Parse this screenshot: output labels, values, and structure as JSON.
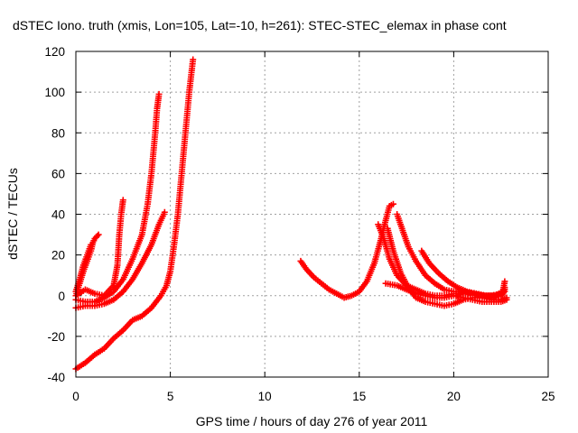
{
  "chart_data": {
    "type": "scatter",
    "title": "dSTEC Iono. truth (xmis, Lon=105, Lat=-10, h=261): STEC-STEC_elemax in phase cont",
    "xlabel": "GPS time / hours of day 276 of year 2011",
    "ylabel": "dSTEC  / TECUs",
    "xlim": [
      0,
      25
    ],
    "ylim": [
      -40,
      120
    ],
    "xticks": [
      "0",
      "5",
      "10",
      "15",
      "20",
      "25"
    ],
    "yticks": [
      "-40",
      "-20",
      "0",
      "20",
      "40",
      "60",
      "80",
      "100",
      "120"
    ],
    "grid": true,
    "marker": "+",
    "color": "#ff0000",
    "series": [
      {
        "points": [
          [
            0.0,
            0
          ],
          [
            0.2,
            6
          ],
          [
            0.4,
            12
          ],
          [
            0.6,
            17
          ],
          [
            0.8,
            22
          ],
          [
            0.9,
            26
          ],
          [
            1.0,
            28
          ],
          [
            1.2,
            30
          ]
        ]
      },
      {
        "points": [
          [
            0.0,
            2
          ],
          [
            0.2,
            8
          ],
          [
            0.4,
            15
          ],
          [
            0.6,
            20
          ],
          [
            0.8,
            25
          ]
        ]
      },
      {
        "points": [
          [
            0.0,
            0
          ],
          [
            0.5,
            3
          ],
          [
            1.0,
            1
          ],
          [
            1.5,
            0
          ],
          [
            2.0,
            5
          ],
          [
            2.2,
            15
          ],
          [
            2.3,
            30
          ],
          [
            2.4,
            40
          ],
          [
            2.5,
            47
          ]
        ]
      },
      {
        "points": [
          [
            0.0,
            -2
          ],
          [
            0.5,
            -3
          ],
          [
            1.0,
            -3
          ],
          [
            1.5,
            -1
          ],
          [
            2.0,
            2
          ],
          [
            2.5,
            8
          ],
          [
            3.0,
            18
          ],
          [
            3.5,
            30
          ],
          [
            3.8,
            45
          ],
          [
            4.0,
            60
          ],
          [
            4.2,
            80
          ],
          [
            4.3,
            92
          ],
          [
            4.4,
            99
          ]
        ]
      },
      {
        "points": [
          [
            0.0,
            -6
          ],
          [
            0.5,
            -5
          ],
          [
            1.0,
            -5
          ],
          [
            1.5,
            -4
          ],
          [
            2.0,
            -2
          ],
          [
            2.5,
            2
          ],
          [
            3.0,
            8
          ],
          [
            3.5,
            16
          ],
          [
            4.0,
            25
          ],
          [
            4.4,
            35
          ],
          [
            4.7,
            41
          ]
        ]
      },
      {
        "points": [
          [
            0.0,
            -36
          ],
          [
            0.5,
            -33
          ],
          [
            1.0,
            -29
          ],
          [
            1.5,
            -26
          ],
          [
            2.0,
            -21
          ],
          [
            2.5,
            -17
          ],
          [
            3.0,
            -12
          ],
          [
            3.5,
            -10
          ],
          [
            4.0,
            -6
          ],
          [
            4.5,
            0
          ],
          [
            4.8,
            5
          ],
          [
            5.0,
            12
          ],
          [
            5.2,
            25
          ],
          [
            5.4,
            40
          ],
          [
            5.6,
            60
          ],
          [
            5.8,
            80
          ],
          [
            6.0,
            100
          ],
          [
            6.2,
            116
          ]
        ]
      },
      {
        "points": [
          [
            11.9,
            17
          ],
          [
            12.2,
            13
          ],
          [
            12.6,
            9
          ],
          [
            13.0,
            6
          ],
          [
            13.4,
            3
          ],
          [
            13.8,
            1
          ],
          [
            14.2,
            -1
          ],
          [
            14.6,
            0
          ],
          [
            15.0,
            2
          ],
          [
            15.4,
            7
          ],
          [
            15.8,
            16
          ],
          [
            16.1,
            26
          ],
          [
            16.4,
            37
          ],
          [
            16.6,
            44
          ],
          [
            16.8,
            45
          ]
        ]
      },
      {
        "points": [
          [
            16.0,
            35
          ],
          [
            16.3,
            28
          ],
          [
            16.6,
            18
          ],
          [
            17.0,
            10
          ],
          [
            17.5,
            5
          ],
          [
            18.0,
            3
          ],
          [
            18.5,
            1
          ],
          [
            19.0,
            0
          ],
          [
            19.5,
            0
          ],
          [
            20.0,
            1
          ],
          [
            20.5,
            1
          ],
          [
            21.0,
            1
          ],
          [
            21.5,
            0
          ],
          [
            22.0,
            0
          ],
          [
            22.5,
            1
          ],
          [
            22.7,
            3
          ]
        ]
      },
      {
        "points": [
          [
            16.5,
            33
          ],
          [
            16.8,
            22
          ],
          [
            17.2,
            11
          ],
          [
            17.6,
            4
          ],
          [
            18.0,
            -1
          ],
          [
            18.5,
            -3
          ],
          [
            19.0,
            -4
          ],
          [
            19.5,
            -5
          ],
          [
            20.0,
            -4
          ],
          [
            20.5,
            -2
          ],
          [
            21.0,
            -1
          ],
          [
            21.5,
            -1
          ],
          [
            22.0,
            -2
          ],
          [
            22.5,
            -2
          ],
          [
            22.8,
            -1
          ]
        ]
      },
      {
        "points": [
          [
            16.4,
            6
          ],
          [
            17.0,
            5
          ],
          [
            17.5,
            3
          ],
          [
            18.0,
            1
          ],
          [
            18.5,
            0
          ],
          [
            19.0,
            -1
          ],
          [
            19.5,
            -1
          ],
          [
            20.0,
            0
          ],
          [
            20.5,
            -1
          ],
          [
            21.0,
            -2
          ],
          [
            21.5,
            -3
          ],
          [
            22.0,
            -3
          ],
          [
            22.5,
            -3
          ],
          [
            22.8,
            -2
          ]
        ]
      },
      {
        "points": [
          [
            17.0,
            40
          ],
          [
            17.3,
            32
          ],
          [
            17.6,
            24
          ],
          [
            18.0,
            17
          ],
          [
            18.5,
            10
          ],
          [
            19.0,
            6
          ],
          [
            19.5,
            3
          ],
          [
            20.0,
            2
          ],
          [
            20.5,
            2
          ],
          [
            21.0,
            1
          ],
          [
            21.5,
            0
          ],
          [
            22.0,
            -1
          ],
          [
            22.5,
            0
          ],
          [
            22.7,
            2
          ]
        ]
      },
      {
        "points": [
          [
            18.3,
            22
          ],
          [
            18.7,
            16
          ],
          [
            19.2,
            11
          ],
          [
            19.7,
            7
          ],
          [
            20.2,
            4
          ],
          [
            20.7,
            2
          ],
          [
            21.2,
            1
          ],
          [
            21.7,
            0
          ],
          [
            22.2,
            0
          ],
          [
            22.6,
            2
          ],
          [
            22.7,
            7
          ]
        ]
      },
      {
        "points": [
          [
            20.2,
            0
          ],
          [
            20.6,
            2
          ],
          [
            21.0,
            1
          ],
          [
            21.5,
            0
          ],
          [
            22.0,
            -1
          ],
          [
            22.5,
            1
          ],
          [
            22.7,
            4
          ]
        ]
      }
    ]
  }
}
